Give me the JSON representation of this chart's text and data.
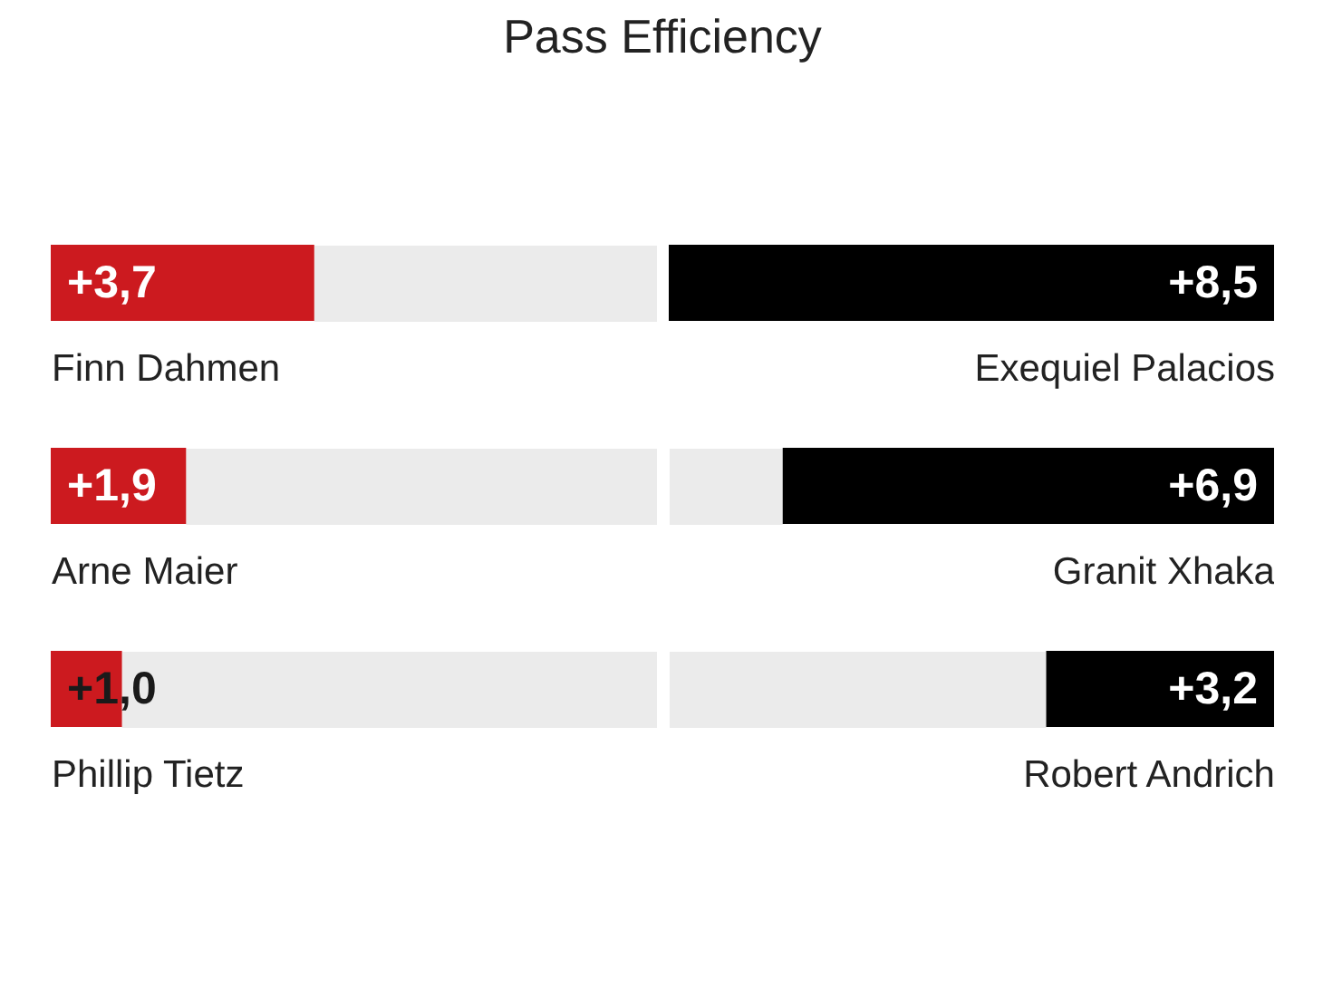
{
  "chart_data": [
    {
      "type": "bar",
      "orientation": "horizontal",
      "title": "Pass Efficiency",
      "categories": [
        "Finn Dahmen",
        "Arne Maier",
        "Phillip Tietz"
      ],
      "values": [
        3.7,
        1.9,
        1.0
      ],
      "value_labels": [
        "+3,7",
        "+1,9",
        "+1,0"
      ],
      "color": "#cc1a1f",
      "xlim": [
        0,
        8.5
      ],
      "tick_labels": "y"
    },
    {
      "type": "bar",
      "orientation": "horizontal",
      "categories": [
        "Exequiel Palacios",
        "Granit Xhaka",
        "Robert Andrich"
      ],
      "values": [
        8.5,
        6.9,
        3.2
      ],
      "value_labels": [
        "+8,5",
        "+6,9",
        "+3,2"
      ],
      "color": "#000000",
      "xlim": [
        8.5,
        0
      ],
      "tick_labels": "y"
    }
  ]
}
